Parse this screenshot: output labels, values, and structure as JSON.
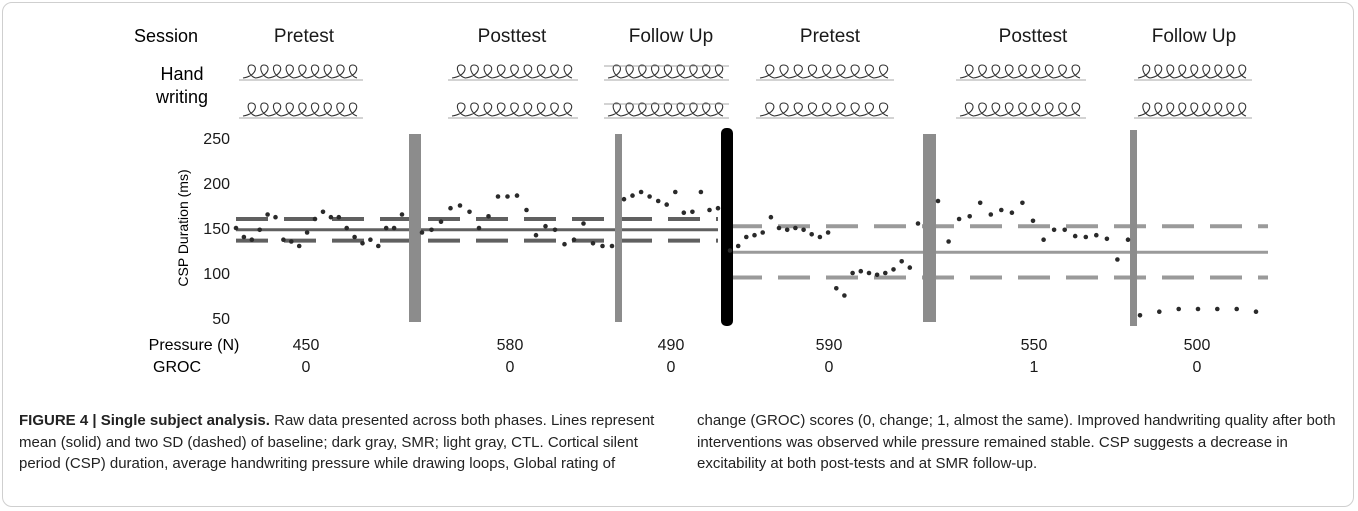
{
  "figure": {
    "caption_label": "FIGURE 4 | Single subject analysis.",
    "caption_left": " Raw data presented across both phases. Lines represent mean (solid) and two SD (dashed) of baseline; dark gray, SMR; light gray, CTL. Cortical silent period (CSP) duration, average handwriting pressure while drawing loops, Global rating of",
    "caption_right": "change (GROC) scores (0, change; 1, almost the same). Improved handwriting quality after both interventions was observed while pressure remained stable. CSP suggests a decrease in excitability at both post-tests and at SMR follow-up."
  },
  "row_labels": {
    "session": "Session",
    "handwriting_1": "Hand",
    "handwriting_2": "writing",
    "pressure": "Pressure (N)",
    "groc": "GROC"
  },
  "sessions": [
    "Pretest",
    "Posttest",
    "Follow Up",
    "Pretest",
    "Posttest",
    "Follow Up"
  ],
  "pressure_values": [
    "450",
    "580",
    "490",
    "590",
    "550",
    "500"
  ],
  "groc_values": [
    "0",
    "0",
    "0",
    "0",
    "1",
    "0"
  ],
  "colors": {
    "smr": "#606060",
    "ctl": "#9a9a9a",
    "phase_line": "#8c8c8c",
    "phase_divider": "#000000",
    "points": "#2a2a2a"
  },
  "icons": [
    "handwriting-sample-icon"
  ],
  "chart_data": {
    "type": "scatter",
    "ylabel": "CSP Duration (ms)",
    "ylim": [
      50,
      250
    ],
    "yticks": [
      50,
      100,
      150,
      200,
      250
    ],
    "grid": false,
    "phases": [
      {
        "name": "SMR",
        "baseline": {
          "mean": 148,
          "lower_2sd": 136,
          "upper_2sd": 160
        },
        "series": [
          {
            "session": "Pretest",
            "values": [
              150,
              140,
              137,
              148,
              165,
              162,
              137,
              135,
              130,
              145,
              160,
              168,
              162,
              162,
              150,
              140,
              133,
              137,
              130,
              150,
              150,
              165
            ]
          },
          {
            "session": "Posttest",
            "values": [
              145,
              148,
              157,
              172,
              175,
              168,
              150,
              163,
              185,
              185,
              186,
              170,
              142,
              152,
              148,
              132,
              137,
              155,
              133,
              130,
              130
            ]
          },
          {
            "session": "Follow Up",
            "values": [
              182,
              186,
              190,
              185,
              180,
              176,
              190,
              167,
              168,
              190,
              170,
              172
            ]
          }
        ]
      },
      {
        "name": "CTL",
        "baseline": {
          "mean": 123,
          "lower_2sd": 95,
          "upper_2sd": 152
        },
        "series": [
          {
            "session": "Pretest",
            "values": [
              125,
              130,
              140,
              142,
              145,
              162,
              150,
              148,
              150,
              148,
              143,
              140,
              145,
              83,
              75,
              100,
              102,
              100,
              98,
              100,
              104,
              113,
              106,
              155
            ]
          },
          {
            "session": "Posttest",
            "values": [
              180,
              135,
              160,
              163,
              178,
              165,
              170,
              167,
              178,
              158,
              137,
              148,
              148,
              141,
              140,
              142,
              138,
              115,
              137
            ]
          },
          {
            "session": "Follow Up",
            "values": [
              53,
              57,
              60,
              60,
              60,
              60,
              57
            ]
          }
        ]
      }
    ]
  }
}
